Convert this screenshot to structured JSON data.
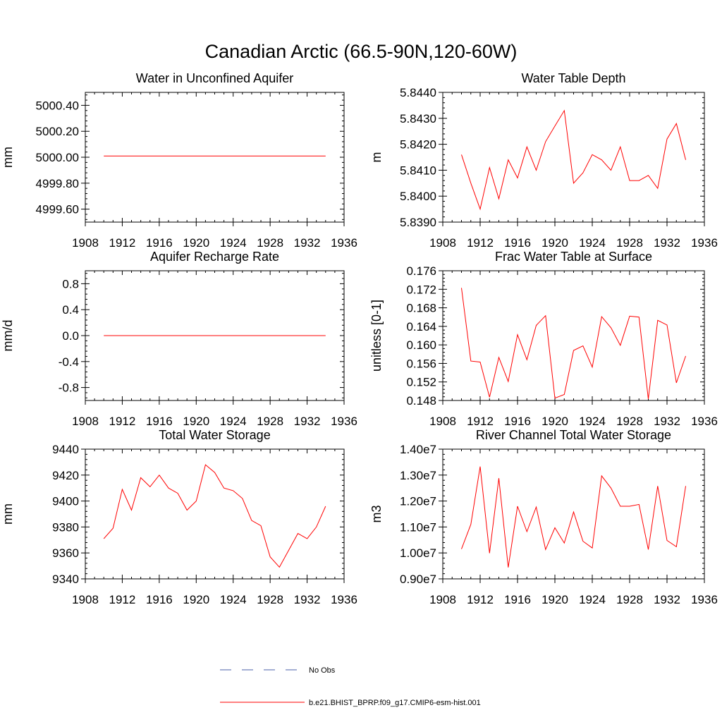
{
  "page": {
    "title": "Canadian Arctic (66.5-90N,120-60W)"
  },
  "legend": {
    "items": [
      {
        "label": "No Obs",
        "color": "#4a5fa8",
        "style": "dashed"
      },
      {
        "label": "b.e21.BHIST_BPRP.f09_g17.CMIP6-esm-hist.001",
        "color": "#ff0000",
        "style": "solid"
      }
    ]
  },
  "chart_data": [
    {
      "type": "line",
      "title": "Water in Unconfined Aquifer",
      "ylabel": "mm",
      "xlim": [
        1908,
        1936
      ],
      "ylim": [
        4999.5,
        5000.5
      ],
      "xticks": [
        1908,
        1912,
        1916,
        1920,
        1924,
        1928,
        1932,
        1936
      ],
      "xtick_labels": [
        "1908",
        "1912",
        "1916",
        "1920",
        "1924",
        "1928",
        "1932",
        "1936"
      ],
      "yticks": [
        4999.6,
        4999.8,
        5000.0,
        5000.2,
        5000.4
      ],
      "ytick_labels": [
        "4999.60",
        "4999.80",
        "5000.00",
        "5000.20",
        "5000.40"
      ],
      "grid": false,
      "color": "#ff0000",
      "x": [
        1910,
        1934
      ],
      "values": [
        5000.01,
        5000.01
      ]
    },
    {
      "type": "line",
      "title": "Water Table Depth",
      "ylabel": "m",
      "xlim": [
        1908,
        1936
      ],
      "ylim": [
        5.839,
        5.844
      ],
      "xticks": [
        1908,
        1912,
        1916,
        1920,
        1924,
        1928,
        1932,
        1936
      ],
      "xtick_labels": [
        "1908",
        "1912",
        "1916",
        "1920",
        "1924",
        "1928",
        "1932",
        "1936"
      ],
      "yticks": [
        5.839,
        5.84,
        5.841,
        5.842,
        5.843,
        5.844
      ],
      "ytick_labels": [
        "5.8390",
        "5.8400",
        "5.8410",
        "5.8420",
        "5.8430",
        "5.8440"
      ],
      "grid": false,
      "color": "#ff0000",
      "x": [
        1910,
        1911,
        1912,
        1913,
        1914,
        1915,
        1916,
        1917,
        1918,
        1919,
        1920,
        1921,
        1922,
        1923,
        1924,
        1925,
        1926,
        1927,
        1928,
        1929,
        1930,
        1931,
        1932,
        1933,
        1934
      ],
      "values": [
        5.8416,
        5.8405,
        5.8395,
        5.8411,
        5.8399,
        5.8414,
        5.8407,
        5.8419,
        5.841,
        5.8421,
        5.8427,
        5.8433,
        5.8405,
        5.8409,
        5.8416,
        5.8414,
        5.841,
        5.8419,
        5.8406,
        5.8406,
        5.8408,
        5.8403,
        5.8422,
        5.8428,
        5.8414
      ]
    },
    {
      "type": "line",
      "title": "Aquifer Recharge Rate",
      "ylabel": "mm/d",
      "xlim": [
        1908,
        1936
      ],
      "ylim": [
        -1.0,
        1.0
      ],
      "xticks": [
        1908,
        1912,
        1916,
        1920,
        1924,
        1928,
        1932,
        1936
      ],
      "xtick_labels": [
        "1908",
        "1912",
        "1916",
        "1920",
        "1924",
        "1928",
        "1932",
        "1936"
      ],
      "yticks": [
        -0.8,
        -0.4,
        0.0,
        0.4,
        0.8
      ],
      "ytick_labels": [
        "-0.8",
        "-0.4",
        "0.0",
        "0.4",
        "0.8"
      ],
      "grid": false,
      "color": "#ff0000",
      "x": [
        1910,
        1934
      ],
      "values": [
        0.0,
        0.0
      ]
    },
    {
      "type": "line",
      "title": "Frac Water Table at Surface",
      "ylabel": "unitless [0-1]",
      "xlim": [
        1908,
        1936
      ],
      "ylim": [
        0.148,
        0.176
      ],
      "xticks": [
        1908,
        1912,
        1916,
        1920,
        1924,
        1928,
        1932,
        1936
      ],
      "xtick_labels": [
        "1908",
        "1912",
        "1916",
        "1920",
        "1924",
        "1928",
        "1932",
        "1936"
      ],
      "yticks": [
        0.148,
        0.152,
        0.156,
        0.16,
        0.164,
        0.168,
        0.172,
        0.176
      ],
      "ytick_labels": [
        "0.148",
        "0.152",
        "0.156",
        "0.160",
        "0.164",
        "0.168",
        "0.172",
        "0.176"
      ],
      "grid": false,
      "color": "#ff0000",
      "x": [
        1910,
        1911,
        1912,
        1913,
        1914,
        1915,
        1916,
        1917,
        1918,
        1919,
        1920,
        1921,
        1922,
        1923,
        1924,
        1925,
        1926,
        1927,
        1928,
        1929,
        1930,
        1931,
        1932,
        1933,
        1934
      ],
      "values": [
        0.1723,
        0.1565,
        0.1563,
        0.1487,
        0.1573,
        0.1521,
        0.1622,
        0.1568,
        0.1642,
        0.1663,
        0.1485,
        0.1493,
        0.1588,
        0.1598,
        0.1552,
        0.1661,
        0.1637,
        0.1599,
        0.1662,
        0.166,
        0.1483,
        0.1653,
        0.1643,
        0.1518,
        0.1576
      ]
    },
    {
      "type": "line",
      "title": "Total Water Storage",
      "ylabel": "mm",
      "xlim": [
        1908,
        1936
      ],
      "ylim": [
        9340,
        9440
      ],
      "xticks": [
        1908,
        1912,
        1916,
        1920,
        1924,
        1928,
        1932,
        1936
      ],
      "xtick_labels": [
        "1908",
        "1912",
        "1916",
        "1920",
        "1924",
        "1928",
        "1932",
        "1936"
      ],
      "yticks": [
        9340,
        9360,
        9380,
        9400,
        9420,
        9440
      ],
      "ytick_labels": [
        "9340",
        "9360",
        "9380",
        "9400",
        "9420",
        "9440"
      ],
      "grid": false,
      "color": "#ff0000",
      "x": [
        1910,
        1911,
        1912,
        1913,
        1914,
        1915,
        1916,
        1917,
        1918,
        1919,
        1920,
        1921,
        1922,
        1923,
        1924,
        1925,
        1926,
        1927,
        1928,
        1929,
        1930,
        1931,
        1932,
        1933,
        1934
      ],
      "values": [
        9371,
        9379,
        9409,
        9393,
        9418,
        9411,
        9420,
        9410,
        9406,
        9393,
        9400,
        9428,
        9422,
        9410,
        9408,
        9402,
        9385,
        9381,
        9357,
        9349,
        9362,
        9375,
        9371,
        9380,
        9396
      ]
    },
    {
      "type": "line",
      "title": "River Channel Total Water Storage",
      "ylabel": "m3",
      "xlim": [
        1908,
        1936
      ],
      "ylim": [
        9000000,
        14000000
      ],
      "xticks": [
        1908,
        1912,
        1916,
        1920,
        1924,
        1928,
        1932,
        1936
      ],
      "xtick_labels": [
        "1908",
        "1912",
        "1916",
        "1920",
        "1924",
        "1928",
        "1932",
        "1936"
      ],
      "yticks": [
        9000000,
        10000000,
        11000000,
        12000000,
        13000000,
        14000000
      ],
      "ytick_labels": [
        "0.90e7",
        "1.00e7",
        "1.10e7",
        "1.20e7",
        "1.30e7",
        "1.40e7"
      ],
      "grid": false,
      "color": "#ff0000",
      "x": [
        1910,
        1911,
        1912,
        1913,
        1914,
        1915,
        1916,
        1917,
        1918,
        1919,
        1920,
        1921,
        1922,
        1923,
        1924,
        1925,
        1926,
        1927,
        1928,
        1929,
        1930,
        1931,
        1932,
        1933,
        1934
      ],
      "values": [
        10150000,
        11100000,
        13330000,
        9990000,
        12880000,
        9440000,
        11800000,
        10820000,
        11770000,
        10130000,
        10970000,
        10380000,
        11580000,
        10450000,
        10190000,
        12970000,
        12500000,
        11800000,
        11800000,
        11870000,
        10130000,
        12580000,
        10480000,
        10240000,
        12580000
      ]
    }
  ]
}
